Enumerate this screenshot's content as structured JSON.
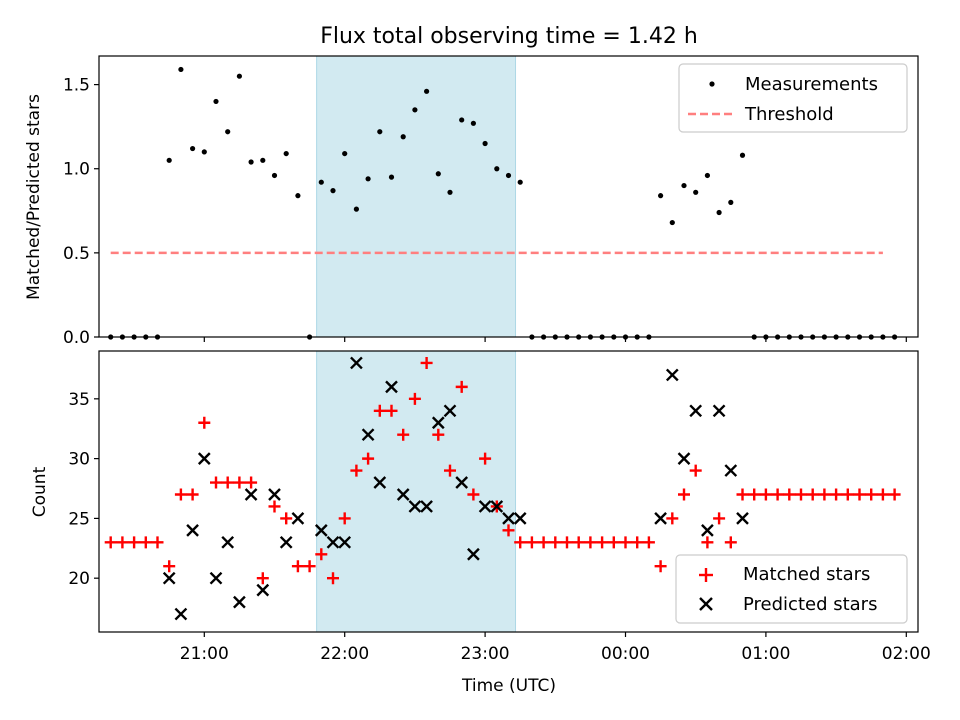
{
  "title": "Flux total observing time = 1.42 h",
  "colors": {
    "shade": "#add8e6",
    "threshold": "#ff7f7f",
    "matched": "#ff0000",
    "predicted": "#000000",
    "measure": "#000000"
  },
  "chart_data": [
    {
      "type": "scatter",
      "panel": "top",
      "ylabel": "Matched/Predicted stars",
      "xlim": [
        "20:15",
        "02:05"
      ],
      "ylim": [
        0,
        1.67
      ],
      "yticks": [
        "0.0",
        "0.5",
        "1.0",
        "1.5"
      ],
      "ytick_values": [
        0,
        0.5,
        1.0,
        1.5
      ],
      "shaded_interval": [
        "21:48",
        "23:13"
      ],
      "legend": [
        "Measurements",
        "Threshold"
      ],
      "legend_position": "upper right",
      "threshold": {
        "name": "Threshold",
        "y": 0.5,
        "x_range": [
          "20:20",
          "01:50"
        ]
      },
      "series": [
        {
          "name": "Measurements",
          "x": [
            "20:20",
            "20:25",
            "20:30",
            "20:35",
            "20:40",
            "20:45",
            "20:50",
            "20:55",
            "21:00",
            "21:05",
            "21:10",
            "21:15",
            "21:20",
            "21:25",
            "21:30",
            "21:35",
            "21:40",
            "21:45",
            "21:50",
            "21:55",
            "22:00",
            "22:05",
            "22:10",
            "22:15",
            "22:20",
            "22:25",
            "22:30",
            "22:35",
            "22:40",
            "22:45",
            "22:50",
            "22:55",
            "23:00",
            "23:05",
            "23:10",
            "23:15",
            "23:20",
            "23:25",
            "23:30",
            "23:35",
            "23:40",
            "23:45",
            "23:50",
            "23:55",
            "00:00",
            "00:05",
            "00:10",
            "00:15",
            "00:20",
            "00:25",
            "00:30",
            "00:35",
            "00:40",
            "00:45",
            "00:50",
            "00:55",
            "01:00",
            "01:05",
            "01:10",
            "01:15",
            "01:20",
            "01:25",
            "01:30",
            "01:35",
            "01:40",
            "01:45",
            "01:50",
            "01:55"
          ],
          "y": [
            0,
            0,
            0,
            0,
            0,
            1.05,
            1.59,
            1.12,
            1.1,
            1.4,
            1.22,
            1.55,
            1.04,
            1.05,
            0.96,
            1.09,
            0.84,
            0,
            0.92,
            0.87,
            1.09,
            0.76,
            0.94,
            1.22,
            0.95,
            1.19,
            1.35,
            1.46,
            0.97,
            0.86,
            1.29,
            1.27,
            1.15,
            1.0,
            0.96,
            0.92,
            0,
            0,
            0,
            0,
            0,
            0,
            0,
            0,
            0,
            0,
            0,
            0.84,
            0.68,
            0.9,
            0.86,
            0.96,
            0.74,
            0.8,
            1.08,
            0,
            0,
            0,
            0,
            0,
            0,
            0,
            0,
            0,
            0,
            0,
            0,
            0
          ]
        }
      ]
    },
    {
      "type": "scatter",
      "panel": "bottom",
      "xlabel": "Time (UTC)",
      "ylabel": "Count",
      "xlim": [
        "20:15",
        "02:05"
      ],
      "ylim": [
        15.5,
        39
      ],
      "xticks": [
        "21:00",
        "22:00",
        "23:00",
        "00:00",
        "01:00",
        "02:00"
      ],
      "yticks": [
        "20",
        "25",
        "30",
        "35"
      ],
      "ytick_values": [
        20,
        25,
        30,
        35
      ],
      "shaded_interval": [
        "21:48",
        "23:13"
      ],
      "legend": [
        "Matched stars",
        "Predicted stars"
      ],
      "legend_position": "lower right",
      "series": [
        {
          "name": "Matched stars",
          "x": [
            "20:20",
            "20:25",
            "20:30",
            "20:35",
            "20:40",
            "20:45",
            "20:50",
            "20:55",
            "21:00",
            "21:05",
            "21:10",
            "21:15",
            "21:20",
            "21:25",
            "21:30",
            "21:35",
            "21:40",
            "21:45",
            "21:50",
            "21:55",
            "22:00",
            "22:05",
            "22:10",
            "22:15",
            "22:20",
            "22:25",
            "22:30",
            "22:35",
            "22:40",
            "22:45",
            "22:50",
            "22:55",
            "23:00",
            "23:05",
            "23:10",
            "23:15",
            "23:20",
            "23:25",
            "23:30",
            "23:35",
            "23:40",
            "23:45",
            "23:50",
            "23:55",
            "00:00",
            "00:05",
            "00:10",
            "00:15",
            "00:20",
            "00:25",
            "00:30",
            "00:35",
            "00:40",
            "00:45",
            "00:50",
            "00:55",
            "01:00",
            "01:05",
            "01:10",
            "01:15",
            "01:20",
            "01:25",
            "01:30",
            "01:35",
            "01:40",
            "01:45",
            "01:50",
            "01:55"
          ],
          "y": [
            23,
            23,
            23,
            23,
            23,
            21,
            27,
            27,
            33,
            28,
            28,
            28,
            28,
            20,
            26,
            25,
            21,
            21,
            22,
            20,
            25,
            29,
            30,
            34,
            34,
            32,
            35,
            38,
            32,
            29,
            36,
            27,
            30,
            26,
            24,
            23,
            23,
            23,
            23,
            23,
            23,
            23,
            23,
            23,
            23,
            23,
            23,
            21,
            25,
            27,
            29,
            23,
            25,
            23,
            27,
            27,
            27,
            27,
            27,
            27,
            27,
            27,
            27,
            27,
            27,
            27,
            27,
            27
          ]
        },
        {
          "name": "Predicted stars",
          "x": [
            "20:45",
            "20:50",
            "20:55",
            "21:00",
            "21:05",
            "21:10",
            "21:15",
            "21:20",
            "21:25",
            "21:30",
            "21:35",
            "21:40",
            "21:50",
            "21:55",
            "22:00",
            "22:05",
            "22:10",
            "22:15",
            "22:20",
            "22:25",
            "22:30",
            "22:35",
            "22:40",
            "22:45",
            "22:50",
            "22:55",
            "23:00",
            "23:05",
            "23:10",
            "23:15",
            "00:15",
            "00:20",
            "00:25",
            "00:30",
            "00:35",
            "00:40",
            "00:45",
            "00:50"
          ],
          "y": [
            20,
            17,
            24,
            30,
            20,
            23,
            18,
            27,
            19,
            27,
            23,
            25,
            24,
            23,
            23,
            38,
            32,
            28,
            36,
            27,
            26,
            26,
            33,
            34,
            28,
            22,
            26,
            26,
            25,
            25,
            25,
            37,
            30,
            34,
            24,
            34,
            29,
            25
          ]
        }
      ]
    }
  ]
}
